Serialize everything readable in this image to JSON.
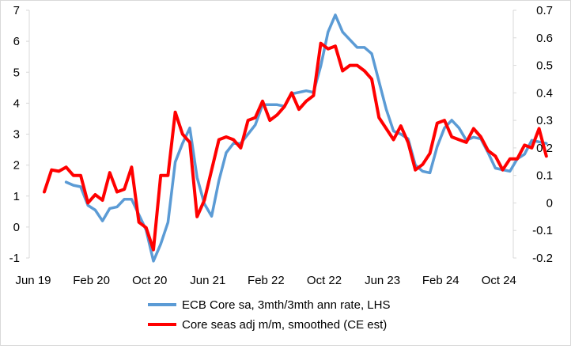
{
  "chart_data": {
    "type": "line",
    "x_tick_labels": [
      "Jun 19",
      "Feb 20",
      "Oct 20",
      "Jun 21",
      "Feb 22",
      "Oct 22",
      "Jun 23",
      "Feb 24",
      "Oct 24"
    ],
    "y_left": {
      "min": -1,
      "max": 7,
      "ticks": [
        "-1",
        "0",
        "1",
        "2",
        "3",
        "4",
        "5",
        "6",
        "7"
      ]
    },
    "y_right": {
      "min": -0.2,
      "max": 0.7,
      "ticks": [
        "-0.2",
        "-0.1",
        "0",
        "0.1",
        "0.2",
        "0.3",
        "0.4",
        "0.5",
        "0.6",
        "0.7"
      ]
    },
    "grid": false,
    "legend_position": "bottom",
    "series": [
      {
        "name": "ECB Core sa, 3mth/3mth ann rate, LHS",
        "axis": "left",
        "color": "#5b9bd5",
        "x": [
          "2019-09",
          "2019-10",
          "2019-11",
          "2019-12",
          "2020-01",
          "2020-02",
          "2020-03",
          "2020-04",
          "2020-05",
          "2020-06",
          "2020-07",
          "2020-08",
          "2020-09",
          "2020-10",
          "2020-11",
          "2020-12",
          "2021-01",
          "2021-02",
          "2021-03",
          "2021-04",
          "2021-05",
          "2021-06",
          "2021-07",
          "2021-08",
          "2021-09",
          "2021-10",
          "2021-11",
          "2021-12",
          "2022-01",
          "2022-02",
          "2022-03",
          "2022-04",
          "2022-05",
          "2022-06",
          "2022-07",
          "2022-08",
          "2022-09",
          "2022-10",
          "2022-11",
          "2022-12",
          "2023-01",
          "2023-02",
          "2023-03",
          "2023-04",
          "2023-05",
          "2023-06",
          "2023-07",
          "2023-08",
          "2023-09",
          "2023-10",
          "2023-11",
          "2023-12",
          "2024-01",
          "2024-02",
          "2024-03",
          "2024-04",
          "2024-05",
          "2024-06",
          "2024-07",
          "2024-08",
          "2024-09",
          "2024-10",
          "2024-11",
          "2024-12",
          "2025-01",
          "2025-02",
          "2025-03"
        ],
        "y": [
          1.45,
          1.35,
          1.3,
          0.7,
          0.55,
          0.2,
          0.6,
          0.65,
          0.9,
          0.9,
          0.4,
          -0.1,
          -1.1,
          -0.55,
          0.15,
          2.1,
          2.7,
          3.2,
          1.6,
          0.75,
          0.35,
          1.5,
          2.4,
          2.7,
          2.7,
          3.0,
          3.3,
          3.95,
          3.95,
          3.95,
          3.9,
          4.3,
          4.35,
          4.4,
          4.35,
          5.2,
          6.3,
          6.85,
          6.3,
          6.05,
          5.8,
          5.8,
          5.6,
          4.7,
          3.8,
          3.1,
          3.0,
          2.85,
          2.0,
          1.8,
          1.75,
          2.6,
          3.2,
          3.45,
          3.2,
          2.8,
          2.9,
          2.85,
          2.4,
          1.9,
          1.85,
          1.8,
          2.2,
          2.35,
          2.8,
          2.75,
          2.7
        ]
      },
      {
        "name": "Core seas adj m/m, smoothed (CE est)",
        "axis": "right",
        "color": "#ff0000",
        "x": [
          "2019-06",
          "2019-07",
          "2019-08",
          "2019-09",
          "2019-10",
          "2019-11",
          "2019-12",
          "2020-01",
          "2020-02",
          "2020-03",
          "2020-04",
          "2020-05",
          "2020-06",
          "2020-07",
          "2020-08",
          "2020-09",
          "2020-10",
          "2020-11",
          "2020-12",
          "2021-01",
          "2021-02",
          "2021-03",
          "2021-04",
          "2021-05",
          "2021-06",
          "2021-07",
          "2021-08",
          "2021-09",
          "2021-10",
          "2021-11",
          "2021-12",
          "2022-01",
          "2022-02",
          "2022-03",
          "2022-04",
          "2022-05",
          "2022-06",
          "2022-07",
          "2022-08",
          "2022-09",
          "2022-10",
          "2022-11",
          "2022-12",
          "2023-01",
          "2023-02",
          "2023-03",
          "2023-04",
          "2023-05",
          "2023-06",
          "2023-07",
          "2023-08",
          "2023-09",
          "2023-10",
          "2023-11",
          "2023-12",
          "2024-01",
          "2024-02",
          "2024-03",
          "2024-04",
          "2024-05",
          "2024-06",
          "2024-07",
          "2024-08",
          "2024-09",
          "2024-10",
          "2024-11",
          "2024-12",
          "2025-01",
          "2025-02",
          "2025-03"
        ],
        "y": [
          0.04,
          0.12,
          0.115,
          0.13,
          0.1,
          0.1,
          0.0,
          0.03,
          0.01,
          0.11,
          0.04,
          0.05,
          0.13,
          -0.07,
          -0.09,
          -0.17,
          0.1,
          0.1,
          0.33,
          0.25,
          0.22,
          -0.05,
          0.01,
          0.12,
          0.23,
          0.24,
          0.23,
          0.2,
          0.3,
          0.31,
          0.37,
          0.3,
          0.32,
          0.35,
          0.4,
          0.34,
          0.37,
          0.39,
          0.58,
          0.56,
          0.57,
          0.48,
          0.5,
          0.5,
          0.48,
          0.45,
          0.31,
          0.27,
          0.23,
          0.28,
          0.22,
          0.12,
          0.14,
          0.18,
          0.29,
          0.3,
          0.24,
          0.23,
          0.22,
          0.27,
          0.24,
          0.19,
          0.17,
          0.12,
          0.16,
          0.16,
          0.21,
          0.2,
          0.27,
          0.17
        ]
      }
    ]
  }
}
